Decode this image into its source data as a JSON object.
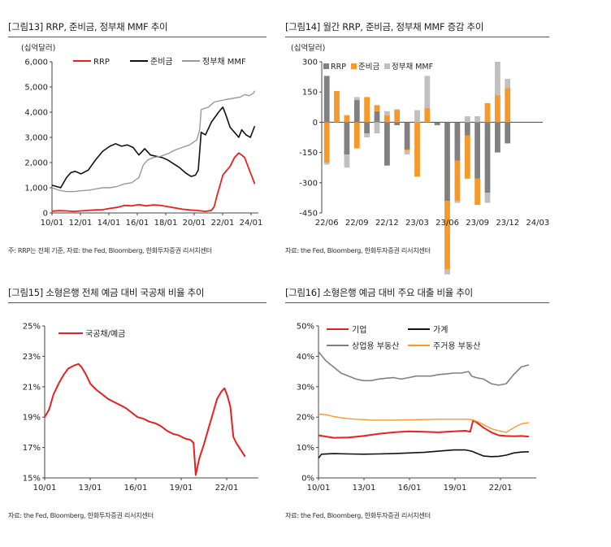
{
  "figures": [
    {
      "title": "[그림13]  RRP, 준비금, 정부채 MMF 추이",
      "source": "주: RRP는 전체 기준, 자료: the Fed, Bloomberg, 한화투자증권 리서치센터"
    },
    {
      "title": "[그림14]  월간 RRP, 준비금, 정부채 MMF 증감 추이",
      "source": "자료: the Fed, Bloomberg, 한화투자증권 리서치센터"
    },
    {
      "title": "[그림15]  소형은행 전체 예금 대비 국공채 비율 추이",
      "source": "자료: the Fed, Bloomberg, 한화투자증권 리서치센터"
    },
    {
      "title": "[그림16]  소형은행 예금 대비 주요 대출 비율 추이",
      "source": "자료: the Fed, Bloomberg, 한화투자증권 리서치센터"
    }
  ],
  "chart_data": [
    {
      "type": "line",
      "title": "RRP, 준비금, 정부채 MMF 추이",
      "unit_label": "(십억달러)",
      "ylim": [
        0,
        6000
      ],
      "yticks": [
        "0",
        "1,000",
        "2,000",
        "3,000",
        "4,000",
        "5,000",
        "6,000"
      ],
      "xticks": [
        "10/01",
        "12/01",
        "14/01",
        "16/01",
        "18/01",
        "20/01",
        "22/01",
        "24/01"
      ],
      "xrange": [
        2010.0,
        2024.25
      ],
      "series": [
        {
          "name": "RRP",
          "color": "#e8201e",
          "x": [
            2010.0,
            2010.5,
            2011.0,
            2011.5,
            2012.0,
            2012.5,
            2013.0,
            2013.5,
            2014.0,
            2014.5,
            2015.0,
            2015.5,
            2016.0,
            2016.5,
            2017.0,
            2017.5,
            2018.0,
            2018.5,
            2019.0,
            2019.5,
            2020.0,
            2020.3,
            2020.6,
            2021.0,
            2021.2,
            2021.4,
            2021.6,
            2021.8,
            2022.0,
            2022.3,
            2022.6,
            2022.9,
            2023.1,
            2023.3,
            2023.5,
            2023.7,
            2023.9,
            2024.0
          ],
          "values": [
            70,
            90,
            80,
            60,
            80,
            100,
            120,
            130,
            180,
            220,
            300,
            280,
            330,
            280,
            320,
            300,
            250,
            200,
            150,
            120,
            100,
            80,
            60,
            100,
            250,
            700,
            1100,
            1500,
            1650,
            1850,
            2200,
            2380,
            2300,
            2200,
            1900,
            1600,
            1300,
            1150
          ]
        },
        {
          "name": "준비금",
          "color": "#111111",
          "x": [
            2010.0,
            2010.3,
            2010.6,
            2011.0,
            2011.3,
            2011.6,
            2012.0,
            2012.5,
            2013.0,
            2013.5,
            2014.0,
            2014.4,
            2014.8,
            2015.2,
            2015.6,
            2016.0,
            2016.4,
            2016.8,
            2017.2,
            2017.6,
            2018.0,
            2018.4,
            2018.8,
            2019.2,
            2019.6,
            2019.9,
            2020.1,
            2020.3,
            2020.6,
            2021.0,
            2021.5,
            2021.8,
            2022.0,
            2022.3,
            2022.6,
            2022.9,
            2023.1,
            2023.4,
            2023.7,
            2024.0
          ],
          "values": [
            1100,
            1050,
            1000,
            1400,
            1600,
            1650,
            1550,
            1700,
            2100,
            2450,
            2650,
            2750,
            2650,
            2700,
            2600,
            2300,
            2550,
            2300,
            2250,
            2200,
            2100,
            1950,
            1800,
            1600,
            1450,
            1500,
            1700,
            3200,
            3100,
            3600,
            4000,
            4200,
            3900,
            3400,
            3200,
            3000,
            3300,
            3100,
            3000,
            3450
          ]
        },
        {
          "name": "정부채 MMF",
          "color": "#999999",
          "x": [
            2010.0,
            2010.5,
            2011.0,
            2011.5,
            2012.0,
            2012.5,
            2013.0,
            2013.5,
            2014.0,
            2014.5,
            2015.0,
            2015.5,
            2016.0,
            2016.3,
            2016.6,
            2017.0,
            2017.5,
            2018.0,
            2018.5,
            2019.0,
            2019.5,
            2020.0,
            2020.2,
            2020.3,
            2020.8,
            2021.2,
            2021.6,
            2022.0,
            2022.5,
            2023.0,
            2023.3,
            2023.6,
            2023.9,
            2024.0
          ],
          "values": [
            1000,
            900,
            850,
            850,
            880,
            900,
            950,
            1000,
            1000,
            1050,
            1150,
            1200,
            1400,
            1900,
            2100,
            2200,
            2250,
            2350,
            2500,
            2600,
            2700,
            2900,
            3300,
            4100,
            4200,
            4400,
            4450,
            4500,
            4550,
            4600,
            4700,
            4650,
            4750,
            4850
          ]
        }
      ]
    },
    {
      "type": "bar",
      "title": "월간 RRP, 준비금, 정부채 MMF 증감 추이",
      "unit_label": "(십억달러)",
      "ylim": [
        -450,
        300
      ],
      "yticks": [
        "-450",
        "-300",
        "-150",
        "0",
        "150",
        "300"
      ],
      "xticks": [
        "22/06",
        "22/09",
        "22/12",
        "23/03",
        "23/06",
        "23/09",
        "23/12",
        "24/03"
      ],
      "categories": [
        "22/06",
        "22/07",
        "22/08",
        "22/09",
        "22/10",
        "22/11",
        "22/12",
        "23/01",
        "23/02",
        "23/03",
        "23/04",
        "23/05",
        "23/06",
        "23/07",
        "23/08",
        "23/09",
        "23/10",
        "23/11",
        "23/12",
        "24/01",
        "24/02",
        "24/03"
      ],
      "series": [
        {
          "name": "RRP",
          "color": "#808080",
          "values": [
            230,
            0,
            -160,
            110,
            -55,
            55,
            -215,
            -15,
            -135,
            0,
            0,
            -15,
            -390,
            -190,
            -65,
            -280,
            -350,
            -150,
            -105,
            0,
            0,
            0
          ]
        },
        {
          "name": "준비금",
          "color": "#f7982a",
          "values": [
            -200,
            155,
            35,
            -130,
            125,
            30,
            35,
            60,
            -5,
            -270,
            70,
            0,
            -340,
            -200,
            -215,
            -130,
            95,
            135,
            170,
            0,
            0,
            0
          ]
        },
        {
          "name": "정부채 MMF",
          "color": "#c0c0c0",
          "values": [
            -10,
            0,
            -65,
            15,
            -20,
            -55,
            20,
            5,
            -20,
            60,
            160,
            0,
            -25,
            -10,
            30,
            30,
            -50,
            165,
            45,
            0,
            0,
            0
          ]
        }
      ]
    },
    {
      "type": "line",
      "title": "소형은행 전체 예금 대비 국공채 비율 추이",
      "ylim": [
        15,
        25
      ],
      "yticks": [
        "15%",
        "17%",
        "19%",
        "21%",
        "23%",
        "25%"
      ],
      "xticks": [
        "10/01",
        "13/01",
        "16/01",
        "19/01",
        "22/01"
      ],
      "xrange": [
        2010.0,
        2024.5
      ],
      "series": [
        {
          "name": "국공채/예금",
          "color": "#e8201e",
          "x": [
            2010.0,
            2010.3,
            2010.6,
            2011.0,
            2011.3,
            2011.6,
            2012.0,
            2012.3,
            2012.5,
            2012.8,
            2013.1,
            2013.5,
            2013.9,
            2014.3,
            2014.7,
            2015.1,
            2015.5,
            2015.9,
            2016.3,
            2016.7,
            2017.1,
            2017.5,
            2017.9,
            2018.3,
            2018.7,
            2019.1,
            2019.5,
            2019.9,
            2020.1,
            2020.25,
            2020.5,
            2020.8,
            2021.1,
            2021.4,
            2021.7,
            2022.0,
            2022.2,
            2022.4,
            2022.6,
            2022.8,
            2023.0,
            2023.2,
            2023.4,
            2023.6
          ],
          "values": [
            19.0,
            19.5,
            20.5,
            21.3,
            21.8,
            22.2,
            22.4,
            22.5,
            22.3,
            21.8,
            21.2,
            20.8,
            20.5,
            20.2,
            20.0,
            19.8,
            19.6,
            19.3,
            19.0,
            18.9,
            18.7,
            18.6,
            18.4,
            18.1,
            17.9,
            17.8,
            17.6,
            17.5,
            17.3,
            15.2,
            16.3,
            17.2,
            18.2,
            19.2,
            20.2,
            20.7,
            20.9,
            20.4,
            19.7,
            17.7,
            17.3,
            17.0,
            16.7,
            16.4
          ]
        }
      ]
    },
    {
      "type": "line",
      "title": "소형은행 예금 대비 주요 대출 비율 추이",
      "ylim": [
        0,
        50
      ],
      "yticks": [
        "0%",
        "10%",
        "20%",
        "30%",
        "40%",
        "50%"
      ],
      "xticks": [
        "10/01",
        "13/01",
        "16/01",
        "19/01",
        "22/01"
      ],
      "xrange": [
        2010.0,
        2024.5
      ],
      "series": [
        {
          "name": "기업",
          "color": "#e8201e",
          "x": [
            2010.0,
            2011.0,
            2012.0,
            2013.0,
            2014.0,
            2015.0,
            2016.0,
            2017.0,
            2018.0,
            2019.0,
            2019.8,
            2020.1,
            2020.3,
            2020.6,
            2021.0,
            2021.5,
            2022.0,
            2022.5,
            2023.0,
            2023.5,
            2024.0
          ],
          "values": [
            14.0,
            13.2,
            13.3,
            13.8,
            14.5,
            15.0,
            15.3,
            15.2,
            15.0,
            15.3,
            15.5,
            15.2,
            19.0,
            18.0,
            16.5,
            15.0,
            14.0,
            13.8,
            13.7,
            13.8,
            13.6
          ]
        },
        {
          "name": "가계",
          "color": "#111111",
          "x": [
            2010.0,
            2010.2,
            2011.0,
            2012.0,
            2013.0,
            2014.0,
            2015.0,
            2016.0,
            2017.0,
            2018.0,
            2019.0,
            2019.8,
            2020.2,
            2020.6,
            2021.0,
            2021.5,
            2022.0,
            2022.5,
            2023.0,
            2023.5,
            2024.0
          ],
          "values": [
            6.5,
            7.8,
            8.0,
            7.9,
            7.8,
            7.9,
            8.0,
            8.2,
            8.4,
            8.8,
            9.2,
            9.2,
            8.8,
            8.0,
            7.2,
            7.0,
            7.1,
            7.5,
            8.2,
            8.5,
            8.6
          ]
        },
        {
          "name": "상업용 부동산",
          "color": "#808080",
          "x": [
            2010.0,
            2010.5,
            2011.0,
            2011.5,
            2012.0,
            2012.5,
            2013.0,
            2013.5,
            2014.0,
            2014.5,
            2015.0,
            2015.5,
            2016.0,
            2016.5,
            2017.0,
            2017.5,
            2018.0,
            2018.5,
            2019.0,
            2019.5,
            2020.0,
            2020.2,
            2020.5,
            2021.0,
            2021.5,
            2022.0,
            2022.5,
            2023.0,
            2023.5,
            2024.0
          ],
          "values": [
            41.5,
            38.5,
            36.5,
            34.5,
            33.5,
            32.5,
            32.0,
            32.0,
            32.5,
            32.8,
            33.0,
            32.5,
            33.0,
            33.5,
            33.5,
            33.5,
            34.0,
            34.2,
            34.5,
            34.5,
            35.0,
            33.5,
            33.0,
            32.5,
            31.0,
            30.5,
            31.0,
            34.0,
            36.5,
            37.2
          ]
        },
        {
          "name": "주거용 부동산",
          "color": "#f7982a",
          "x": [
            2010.0,
            2010.5,
            2011.0,
            2011.5,
            2012.0,
            2012.5,
            2013.0,
            2013.5,
            2014.0,
            2015.0,
            2016.0,
            2017.0,
            2018.0,
            2019.0,
            2019.8,
            2020.2,
            2020.6,
            2021.0,
            2021.5,
            2022.0,
            2022.5,
            2023.0,
            2023.5,
            2024.0
          ],
          "values": [
            21.0,
            20.8,
            20.2,
            19.8,
            19.5,
            19.3,
            19.2,
            19.0,
            19.0,
            19.0,
            19.1,
            19.2,
            19.3,
            19.3,
            19.3,
            19.2,
            18.5,
            17.5,
            16.2,
            15.5,
            15.0,
            16.5,
            17.8,
            18.2
          ]
        }
      ]
    }
  ]
}
